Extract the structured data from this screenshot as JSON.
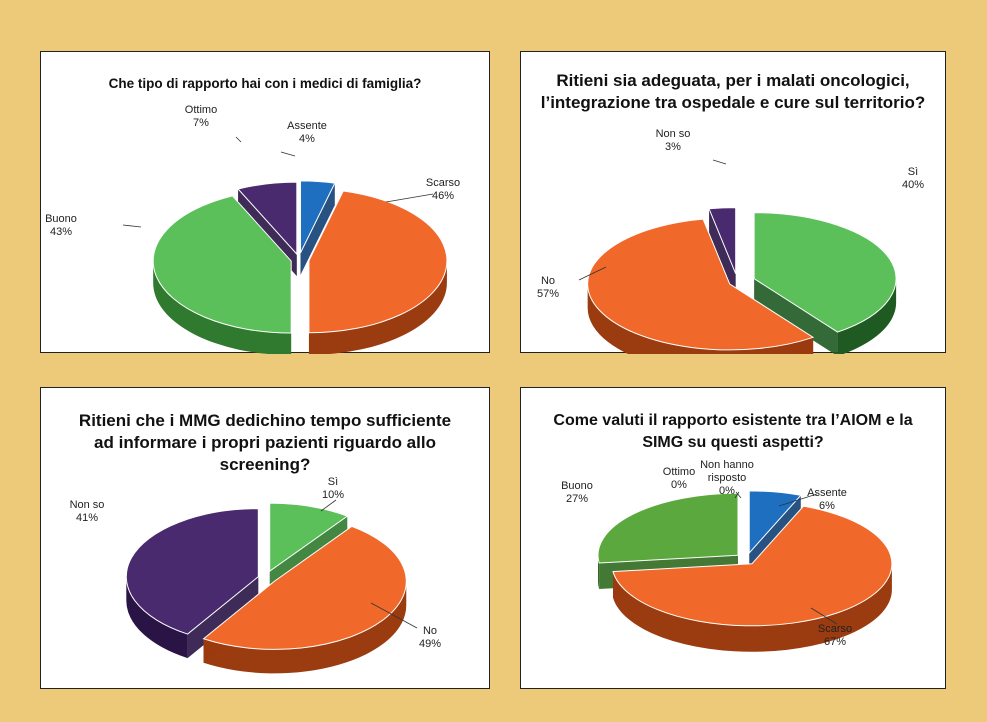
{
  "background_color": "#ecca7a",
  "chart_data": [
    {
      "type": "pie",
      "title": "Che tipo di rapporto hai con i medici di famiglia?",
      "slices": [
        {
          "label": "Assente",
          "value": 4,
          "pct": "4%",
          "color": "#1f6fc0",
          "side": "#0f3f74"
        },
        {
          "label": "Scarso",
          "value": 46,
          "pct": "46%",
          "color": "#f0692a",
          "side": "#9b3b10"
        },
        {
          "label": "Buono",
          "value": 43,
          "pct": "43%",
          "color": "#5bbf5a",
          "side": "#2f7a2e"
        },
        {
          "label": "Ottimo",
          "value": 7,
          "pct": "7%",
          "color": "#4a2a6e",
          "side": "#2a1445"
        }
      ]
    },
    {
      "type": "pie",
      "title": "Ritieni sia adeguata, per i malati oncologici, l’integrazione tra ospedale e cure sul territorio?",
      "slices": [
        {
          "label": "Sì",
          "value": 40,
          "pct": "40%",
          "color": "#5bbf5a",
          "side": "#1e5a22"
        },
        {
          "label": "No",
          "value": 57,
          "pct": "57%",
          "color": "#f0692a",
          "side": "#9b3b10"
        },
        {
          "label": "Non so",
          "value": 3,
          "pct": "3%",
          "color": "#4a2a6e",
          "side": "#2a1445"
        }
      ]
    },
    {
      "type": "pie",
      "title": "Ritieni che i MMG dedichino tempo sufficiente ad informare i propri pazienti riguardo allo screening?",
      "slices": [
        {
          "label": "Sì",
          "value": 10,
          "pct": "10%",
          "color": "#5bbf5a",
          "side": "#2f7a2e"
        },
        {
          "label": "No",
          "value": 49,
          "pct": "49%",
          "color": "#f0692a",
          "side": "#9b3b10"
        },
        {
          "label": "Non so",
          "value": 41,
          "pct": "41%",
          "color": "#4a2a6e",
          "side": "#2a1445"
        }
      ]
    },
    {
      "type": "pie",
      "title": "Come valuti il rapporto esistente tra l’AIOM e la SIMG su questi aspetti?",
      "slices": [
        {
          "label": "Assente",
          "value": 6,
          "pct": "6%",
          "color": "#1f6fc0",
          "side": "#0f3f74"
        },
        {
          "label": "Scarso",
          "value": 67,
          "pct": "67%",
          "color": "#f0692a",
          "side": "#9b3b10"
        },
        {
          "label": "Buono",
          "value": 27,
          "pct": "27%",
          "color": "#5aa83e",
          "side": "#2f6a1e"
        },
        {
          "label": "Ottimo",
          "value": 0,
          "pct": "0%",
          "color": "#4a2a6e",
          "side": "#2a1445"
        },
        {
          "label": "Non hanno risposto",
          "value": 0,
          "pct": "0%",
          "color": "#888888",
          "side": "#555555"
        }
      ]
    }
  ]
}
